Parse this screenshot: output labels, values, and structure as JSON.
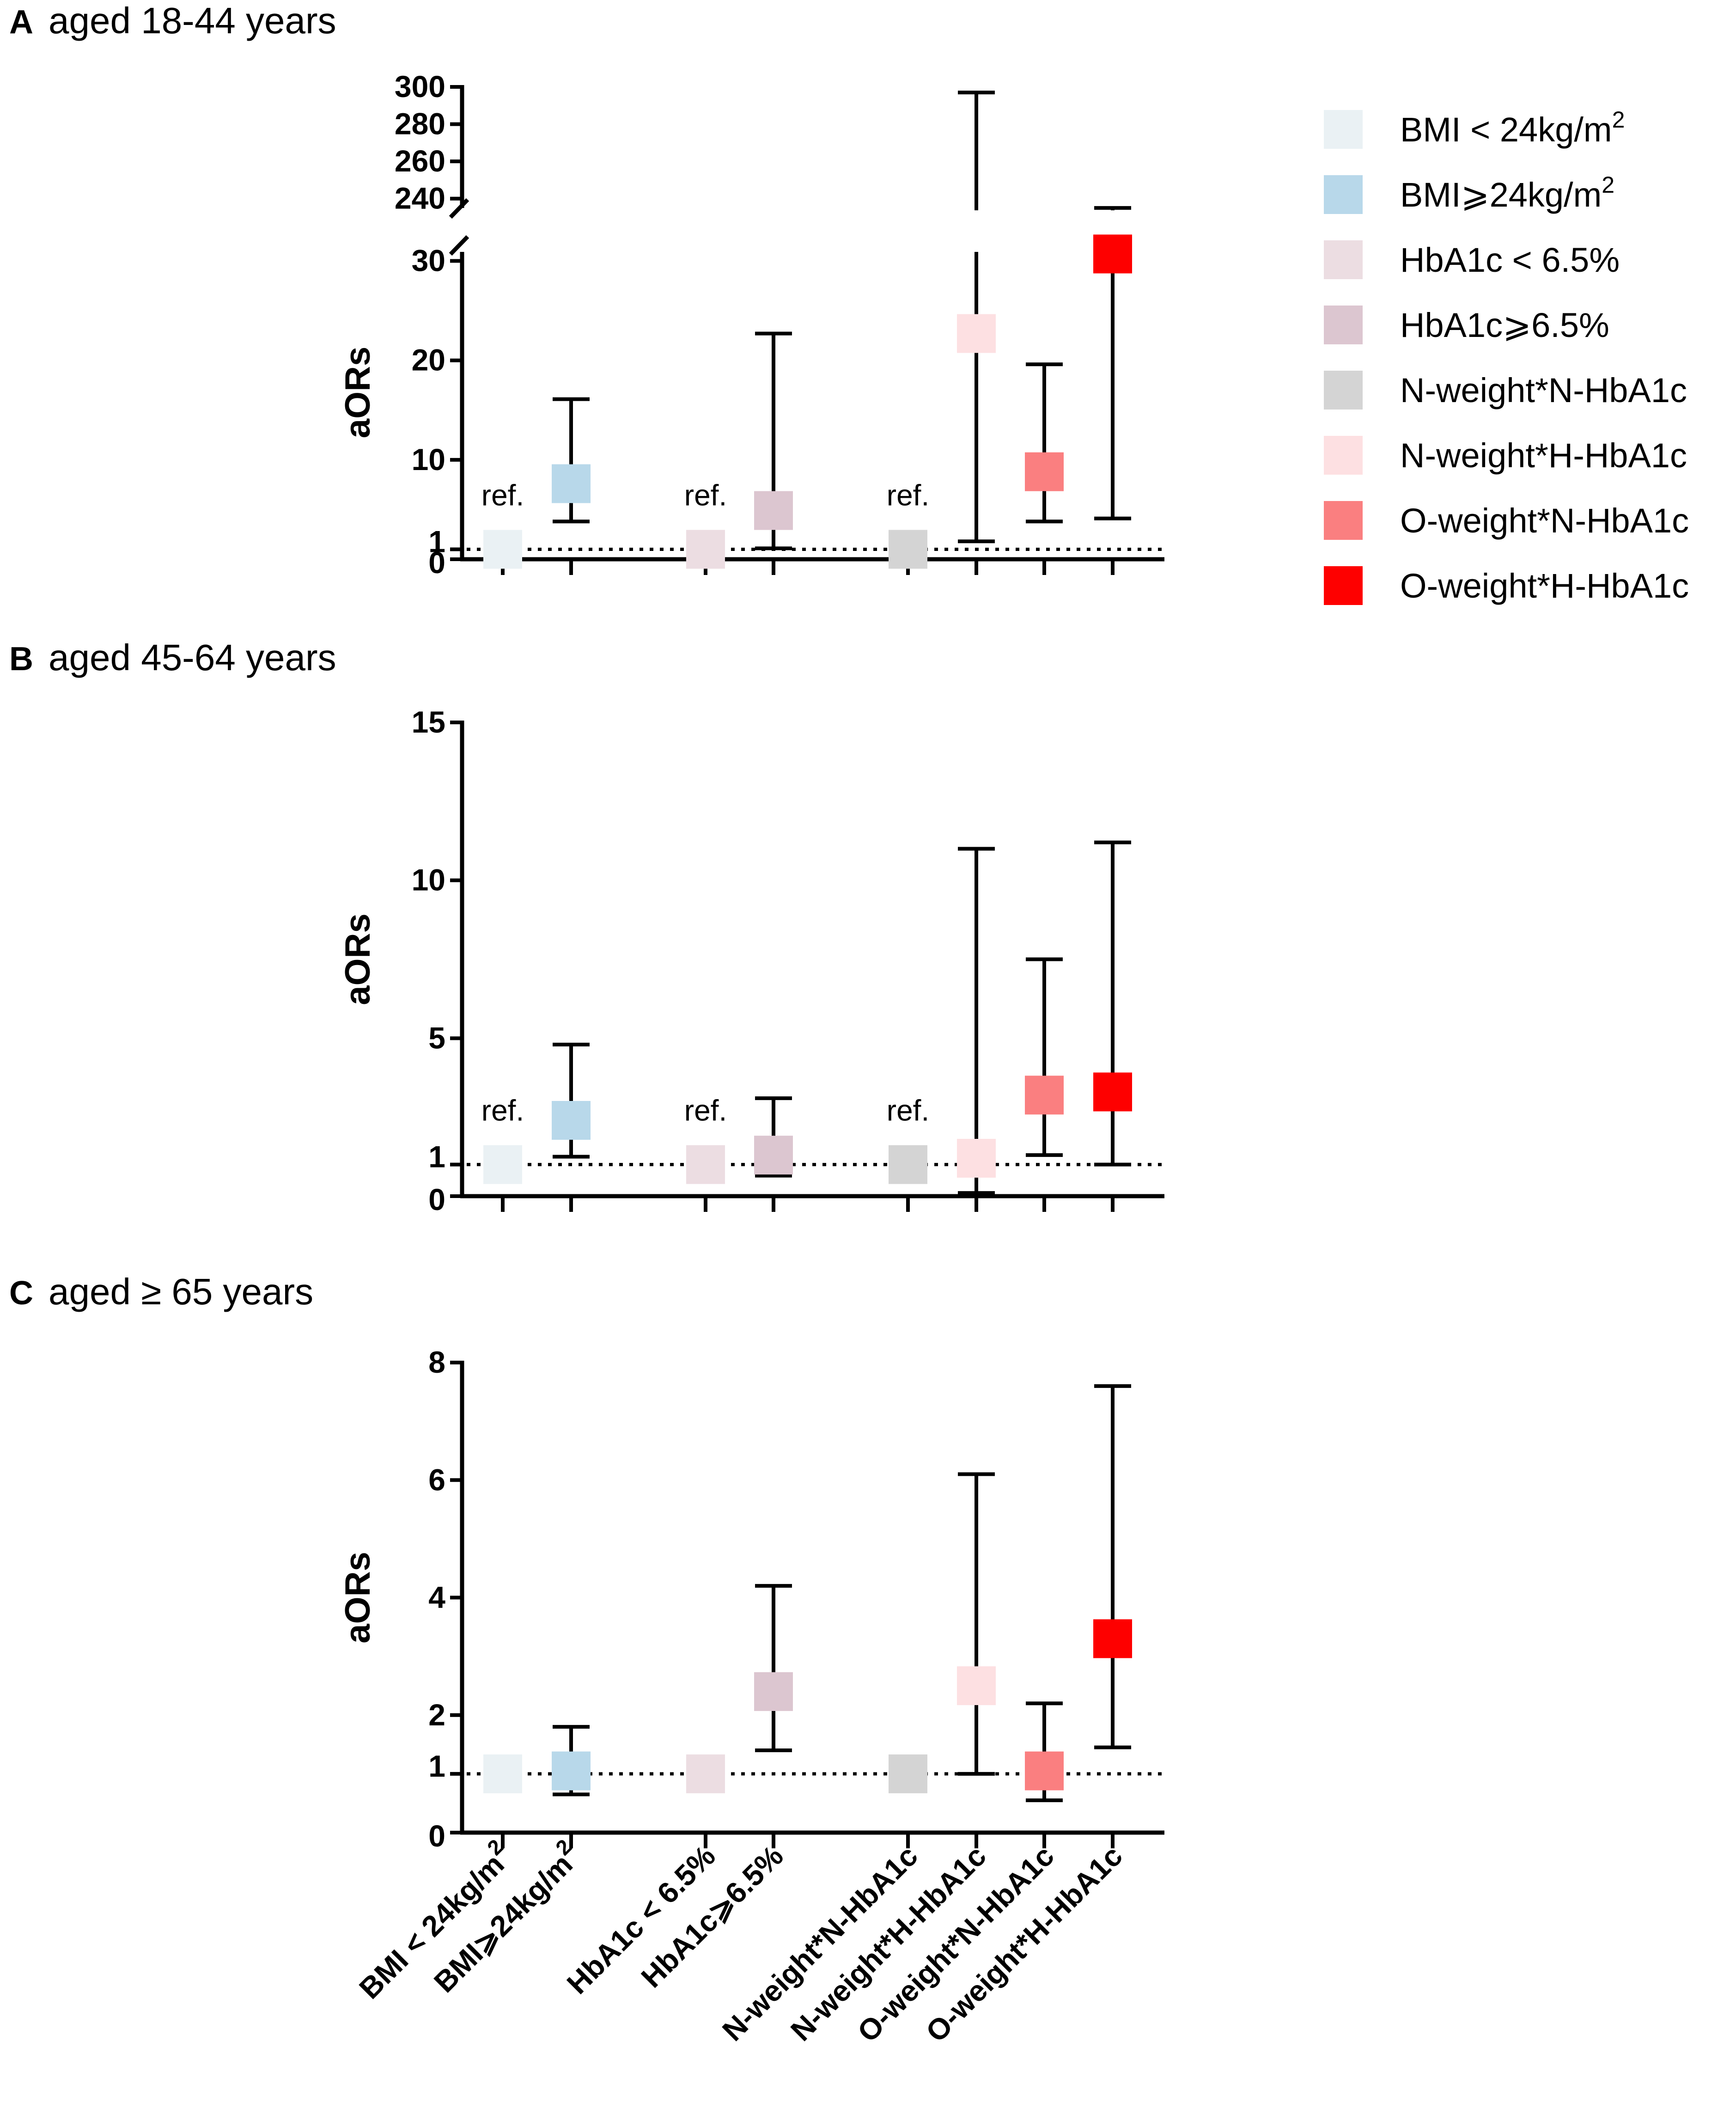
{
  "legend": [
    {
      "label": "BMI < 24kg/m",
      "sup": "2",
      "color": "#eaf1f4"
    },
    {
      "label": "BMI⩾24kg/m",
      "sup": "2",
      "color": "#b8d8ea"
    },
    {
      "label": "HbA1c < 6.5%",
      "sup": "",
      "color": "#ecdde2"
    },
    {
      "label": "HbA1c⩾6.5%",
      "sup": "",
      "color": "#dcc6d0"
    },
    {
      "label": "N-weight*N-HbA1c",
      "sup": "",
      "color": "#d4d4d4"
    },
    {
      "label": "N-weight*H-HbA1c",
      "sup": "",
      "color": "#fde0e2"
    },
    {
      "label": "O-weight*N-HbA1c",
      "sup": "",
      "color": "#fa7f80"
    },
    {
      "label": "O-weight*H-HbA1c",
      "sup": "",
      "color": "#fe0000"
    }
  ],
  "x_category_labels": [
    {
      "label": "BMI < 24kg/m",
      "sup": "2"
    },
    {
      "label": "BMI⩾24kg/m",
      "sup": "2"
    },
    {
      "label": "HbA1c < 6.5%",
      "sup": ""
    },
    {
      "label": "HbA1c⩾6.5%",
      "sup": ""
    },
    {
      "label": "N-weight*N-HbA1c",
      "sup": ""
    },
    {
      "label": "N-weight*H-HbA1c",
      "sup": ""
    },
    {
      "label": "O-weight*N-HbA1c",
      "sup": ""
    },
    {
      "label": "O-weight*H-HbA1c",
      "sup": ""
    }
  ],
  "chart_data": [
    {
      "type": "scatter",
      "panel": "A",
      "title": "aged 18-44 years",
      "ylabel": "aORs",
      "reference_line": 1,
      "ref_label": "ref.",
      "ref_indices": [
        0,
        2,
        4
      ],
      "y_axis_break": {
        "lower_range": [
          0,
          33
        ],
        "upper_range": [
          230,
          300
        ]
      },
      "lower_ticks": [
        0,
        1,
        10,
        20,
        30
      ],
      "upper_ticks": [
        240,
        260,
        280,
        300
      ],
      "points": [
        {
          "value": 1.0,
          "lower": null,
          "upper": null
        },
        {
          "value": 7.6,
          "lower": 3.8,
          "upper": 16.1
        },
        {
          "value": 1.0,
          "lower": null,
          "upper": null
        },
        {
          "value": 4.9,
          "lower": 1.1,
          "upper": 22.7
        },
        {
          "value": 1.0,
          "lower": null,
          "upper": null
        },
        {
          "value": 22.7,
          "lower": 1.8,
          "upper": 297
        },
        {
          "value": 8.8,
          "lower": 3.8,
          "upper": 19.6
        },
        {
          "value": 30.7,
          "lower": 4.1,
          "upper": 235
        }
      ]
    },
    {
      "type": "scatter",
      "panel": "B",
      "title": "aged 45-64 years",
      "ylabel": "aORs",
      "reference_line": 1,
      "ref_label": "ref.",
      "ref_indices": [
        0,
        2,
        4
      ],
      "ylim": [
        0,
        15
      ],
      "ticks": [
        0,
        1,
        5,
        10,
        15
      ],
      "points": [
        {
          "value": 1.0,
          "lower": null,
          "upper": null
        },
        {
          "value": 2.4,
          "lower": 1.25,
          "upper": 4.8
        },
        {
          "value": 1.0,
          "lower": null,
          "upper": null
        },
        {
          "value": 1.3,
          "lower": 0.65,
          "upper": 3.1
        },
        {
          "value": 1.0,
          "lower": null,
          "upper": null
        },
        {
          "value": 1.2,
          "lower": 0.1,
          "upper": 11.0
        },
        {
          "value": 3.2,
          "lower": 1.3,
          "upper": 7.5
        },
        {
          "value": 3.3,
          "lower": 1.0,
          "upper": 11.2
        }
      ]
    },
    {
      "type": "scatter",
      "panel": "C",
      "title": "aged ≥ 65 years",
      "ylabel": "aORs",
      "reference_line": 1,
      "ylim": [
        0,
        8
      ],
      "ticks": [
        0,
        1,
        2,
        4,
        6,
        8
      ],
      "points": [
        {
          "value": 1.0,
          "lower": null,
          "upper": null
        },
        {
          "value": 1.05,
          "lower": 0.65,
          "upper": 1.8
        },
        {
          "value": 1.0,
          "lower": null,
          "upper": null
        },
        {
          "value": 2.4,
          "lower": 1.4,
          "upper": 4.2
        },
        {
          "value": 1.0,
          "lower": null,
          "upper": null
        },
        {
          "value": 2.5,
          "lower": 1.0,
          "upper": 6.1
        },
        {
          "value": 1.05,
          "lower": 0.55,
          "upper": 2.2
        },
        {
          "value": 3.3,
          "lower": 1.45,
          "upper": 7.6
        }
      ]
    }
  ]
}
